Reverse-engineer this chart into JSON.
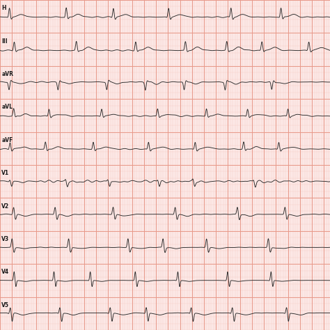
{
  "background_color": "#fce8e6",
  "grid_major_color": "#e8998a",
  "grid_minor_color": "#f5c8c2",
  "ecg_line_color": "#2a2a2a",
  "label_color": "#1a1a1a",
  "white_gap_color": "#f7ede8",
  "figsize": [
    4.74,
    4.74
  ],
  "dpi": 100,
  "sampling_rate": 500,
  "duration": 5.5,
  "lead_labels": [
    "H",
    "III",
    "aVR",
    "aVL",
    "aVF",
    "V1",
    "V2",
    "V3",
    "V4",
    "V5"
  ]
}
